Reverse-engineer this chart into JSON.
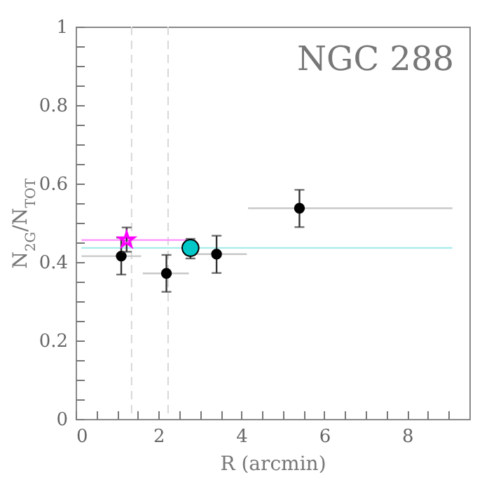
{
  "chart_data": {
    "type": "scatter",
    "xlabel": "R (arcmin)",
    "ylabel": "N$_{2G}$/N$_{TOT}$",
    "annotations": [
      "NGC 288"
    ],
    "xlim": [
      0,
      9.5
    ],
    "ylim": [
      0,
      1
    ],
    "xticks": [
      0,
      {
        "value": 0.5,
        "label": null
      },
      {
        "value": 1,
        "label": null
      },
      {
        "value": 1.5,
        "label": null
      },
      2,
      {
        "value": 2.5,
        "label": null
      },
      {
        "value": 3,
        "label": null
      },
      {
        "value": 3.5,
        "label": null
      },
      4,
      {
        "value": 4.5,
        "label": null
      },
      {
        "value": 5,
        "label": null
      },
      {
        "value": 5.5,
        "label": null
      },
      6,
      {
        "value": 6.5,
        "label": null
      },
      {
        "value": 7,
        "label": null
      },
      {
        "value": 7.5,
        "label": null
      },
      8,
      {
        "value": 8.5,
        "label": null
      },
      {
        "value": 9,
        "label": null
      }
    ],
    "yticks": [
      {
        "value": 0,
        "label": "0"
      },
      {
        "value": 0.05,
        "label": null
      },
      {
        "value": 0.1,
        "label": null
      },
      {
        "value": 0.15,
        "label": null
      },
      0.2,
      {
        "value": 0.25,
        "label": null
      },
      {
        "value": 0.3,
        "label": null
      },
      {
        "value": 0.35,
        "label": null
      },
      0.4,
      {
        "value": 0.45,
        "label": null
      },
      {
        "value": 0.5,
        "label": null
      },
      {
        "value": 0.55,
        "label": null
      },
      0.6,
      {
        "value": 0.65,
        "label": null
      },
      {
        "value": 0.7,
        "label": null
      },
      {
        "value": 0.75,
        "label": null
      },
      0.8,
      {
        "value": 0.85,
        "label": null
      },
      {
        "value": 0.9,
        "label": null
      },
      {
        "value": 0.95,
        "label": null
      },
      {
        "value": 1,
        "label": "1"
      }
    ],
    "ref_lines": [
      {
        "axis": "x",
        "value": 1.35,
        "color": "#d8d8d8",
        "line_style": "dashed"
      },
      {
        "axis": "x",
        "value": 2.23,
        "color": "#d8d8d8",
        "line_style": "dashed"
      }
    ],
    "series": [
      {
        "type": "line",
        "color": "#a8ecec",
        "x": [
          0.14,
          9.09
        ],
        "values": [
          0.436,
          0.436
        ],
        "marker": "none",
        "line_style": "solid"
      },
      {
        "type": "line",
        "color": "#ff90ff",
        "x": [
          0.14,
          2.69
        ],
        "values": [
          0.456,
          0.456
        ],
        "marker": "none",
        "line_style": "solid"
      },
      {
        "color": "#000000",
        "marker": "circle",
        "x": [
          1.1,
          2.19,
          3.4,
          5.4
        ],
        "values": [
          0.415,
          0.371,
          0.42,
          0.537
        ],
        "errors": [
          [
            0.368,
            0.462
          ],
          [
            0.324,
            0.418
          ],
          [
            0.372,
            0.467
          ],
          [
            0.489,
            0.584
          ]
        ],
        "xerrors": [
          [
            0.14,
            1.58
          ],
          [
            1.62,
            2.73
          ],
          [
            2.78,
            4.13
          ],
          [
            4.16,
            9.09
          ]
        ]
      },
      {
        "color": "#00c8c8",
        "marker": "circle",
        "x": [
          2.77
        ],
        "values": [
          0.436
        ],
        "errors": [
          [
            0.409,
            0.459
          ]
        ]
      },
      {
        "color": "#ff00ff",
        "marker": "star",
        "x": [
          1.23
        ],
        "values": [
          0.456
        ],
        "errors": [
          [
            0.426,
            0.488
          ]
        ]
      }
    ]
  }
}
